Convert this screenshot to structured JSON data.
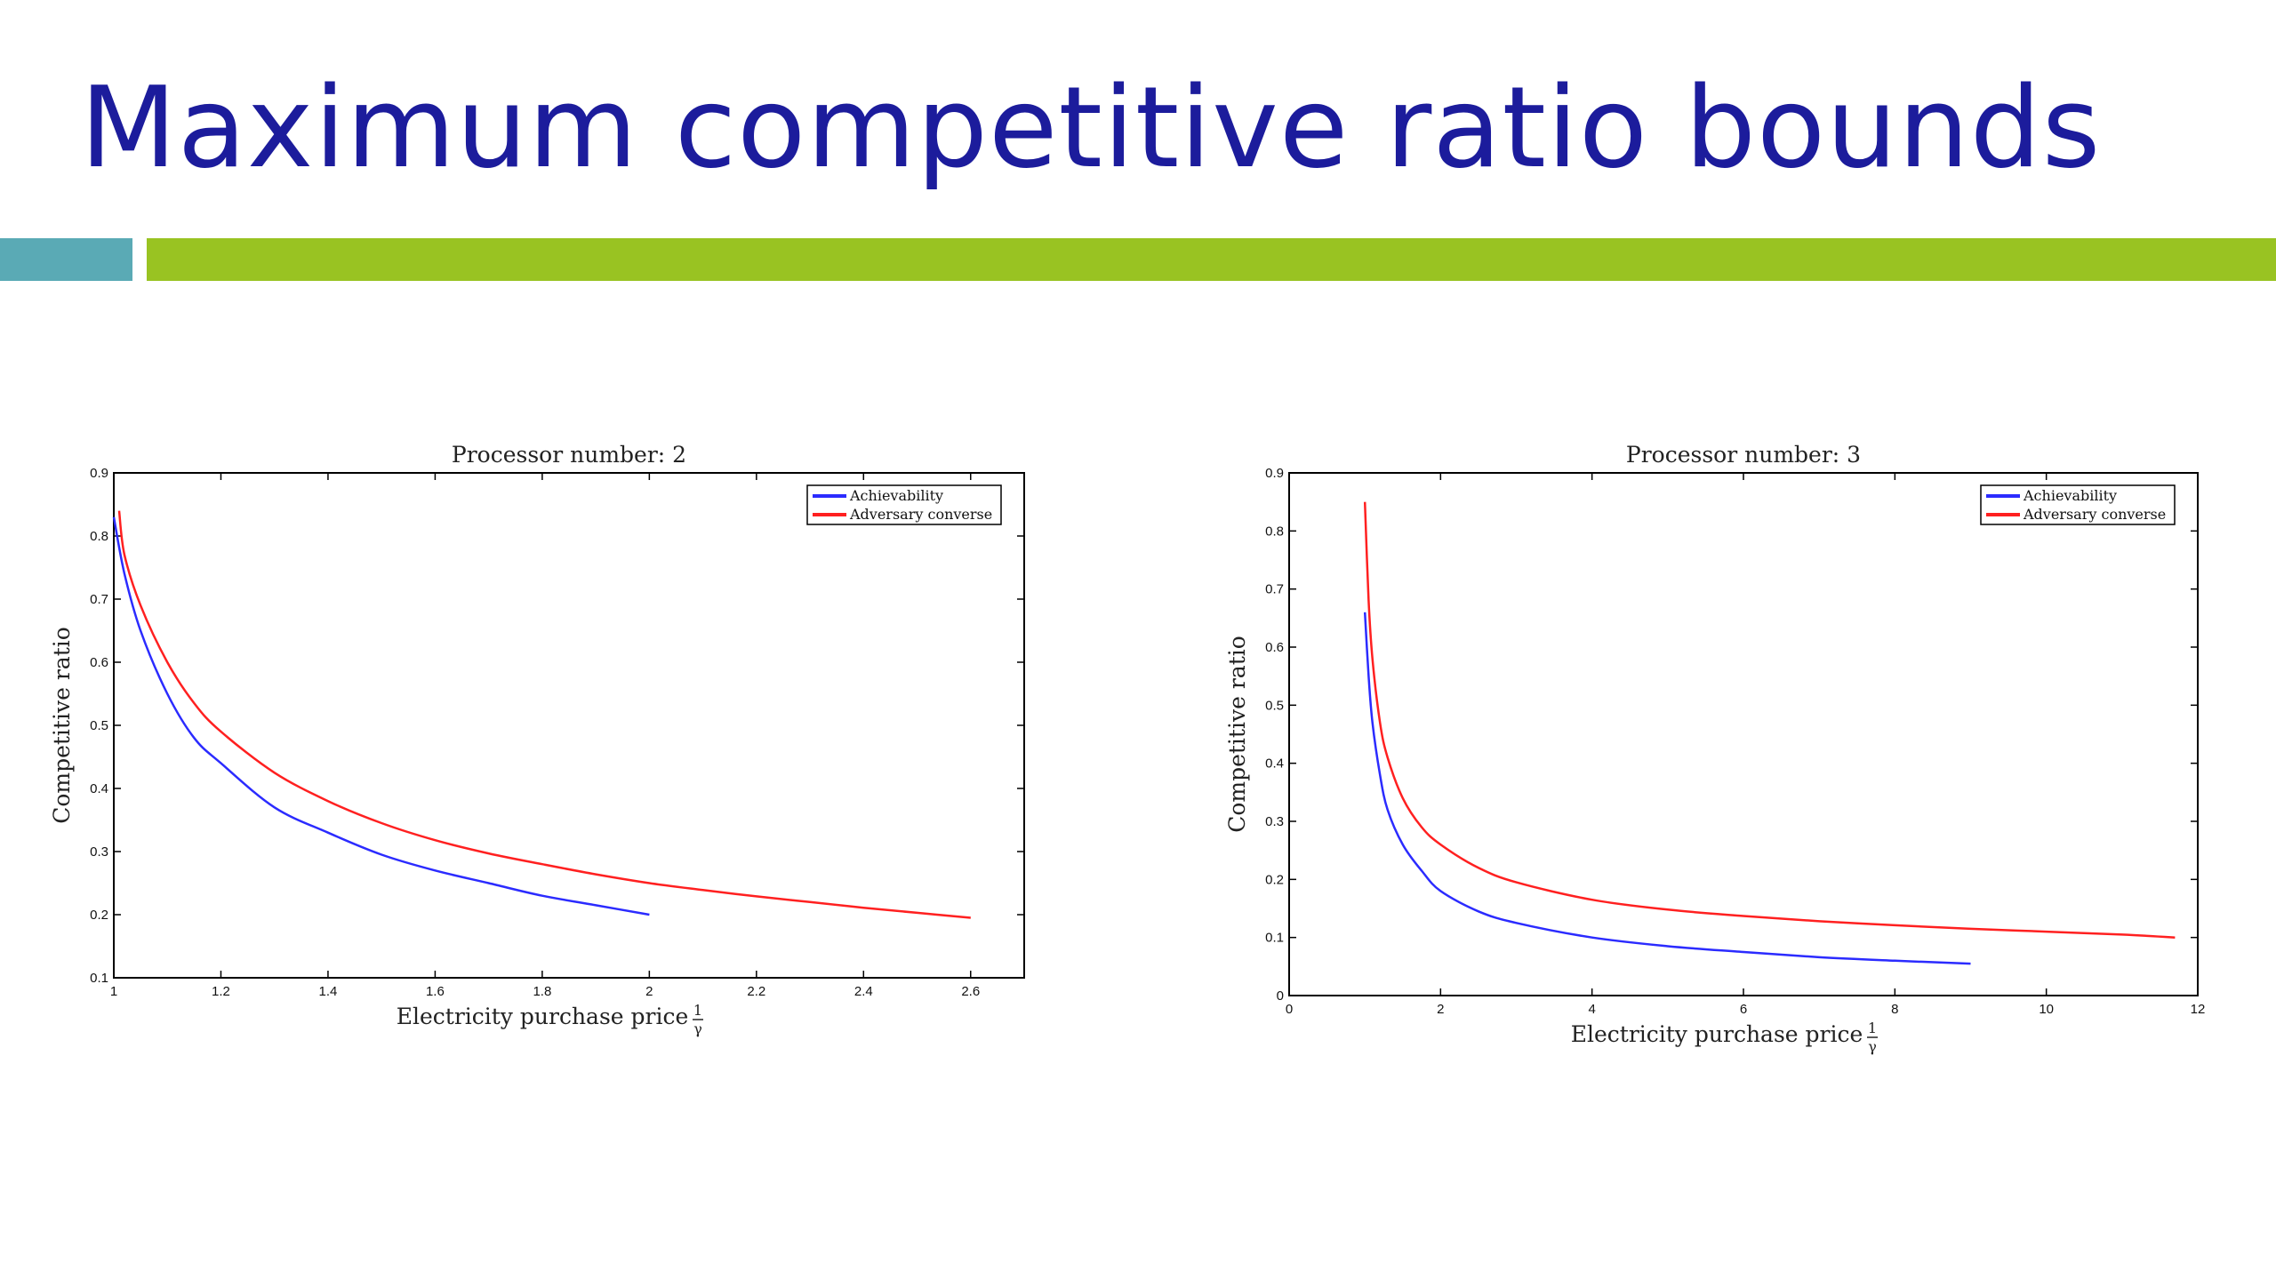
{
  "slide": {
    "title": "Maximum competitive ratio bounds",
    "colors": {
      "title": "#1c1c9c",
      "accent_teal": "#5aaab5",
      "accent_green": "#99c322"
    }
  },
  "chart_data": [
    {
      "type": "line",
      "title": "Processor number: 2",
      "xlabel": "Electricity purchase price",
      "xlabel_frac": {
        "num": "1",
        "den": "γ"
      },
      "ylabel": "Competitive ratio",
      "xlim": [
        1,
        2.7
      ],
      "ylim": [
        0.1,
        0.9
      ],
      "xticks": [
        1,
        1.2,
        1.4,
        1.6,
        1.8,
        2,
        2.2,
        2.4,
        2.6
      ],
      "xtick_labels": [
        "1",
        "1.2",
        "1.4",
        "1.6",
        "1.8",
        "2",
        "2.2",
        "2.4",
        "2.6"
      ],
      "yticks": [
        0.1,
        0.2,
        0.3,
        0.4,
        0.5,
        0.6,
        0.7,
        0.8,
        0.9
      ],
      "ytick_labels": [
        "0.1",
        "0.2",
        "0.3",
        "0.4",
        "0.5",
        "0.6",
        "0.7",
        "0.8",
        "0.9"
      ],
      "legend_position": "top-right",
      "grid": false,
      "series": [
        {
          "name": "Achievability",
          "color": "#2b2bff",
          "x": [
            1.0,
            1.02,
            1.05,
            1.1,
            1.15,
            1.2,
            1.3,
            1.4,
            1.5,
            1.6,
            1.7,
            1.8,
            1.9,
            2.0
          ],
          "y": [
            0.83,
            0.74,
            0.65,
            0.55,
            0.48,
            0.44,
            0.37,
            0.33,
            0.295,
            0.27,
            0.25,
            0.23,
            0.215,
            0.2
          ]
        },
        {
          "name": "Adversary converse",
          "color": "#ff2020",
          "x": [
            1.01,
            1.02,
            1.05,
            1.1,
            1.15,
            1.2,
            1.3,
            1.4,
            1.5,
            1.6,
            1.7,
            1.8,
            1.9,
            2.0,
            2.1,
            2.2,
            2.3,
            2.4,
            2.5,
            2.6
          ],
          "y": [
            0.84,
            0.77,
            0.69,
            0.6,
            0.535,
            0.49,
            0.425,
            0.38,
            0.345,
            0.318,
            0.297,
            0.28,
            0.264,
            0.25,
            0.239,
            0.229,
            0.22,
            0.211,
            0.203,
            0.195
          ]
        }
      ]
    },
    {
      "type": "line",
      "title": "Processor number: 3",
      "xlabel": "Electricity purchase price",
      "xlabel_frac": {
        "num": "1",
        "den": "γ"
      },
      "ylabel": "Competitive ratio",
      "xlim": [
        0,
        12
      ],
      "ylim": [
        0,
        0.9
      ],
      "xticks": [
        0,
        2,
        4,
        6,
        8,
        10,
        12
      ],
      "xtick_labels": [
        "0",
        "2",
        "4",
        "6",
        "8",
        "10",
        "12"
      ],
      "yticks": [
        0,
        0.1,
        0.2,
        0.3,
        0.4,
        0.5,
        0.6,
        0.7,
        0.8,
        0.9
      ],
      "ytick_labels": [
        "0",
        "0.1",
        "0.2",
        "0.3",
        "0.4",
        "0.5",
        "0.6",
        "0.7",
        "0.8",
        "0.9"
      ],
      "legend_position": "top-right",
      "grid": false,
      "series": [
        {
          "name": "Achievability",
          "color": "#2b2bff",
          "x": [
            1.0,
            1.05,
            1.1,
            1.2,
            1.3,
            1.5,
            1.75,
            2.0,
            2.5,
            3,
            4,
            5,
            6,
            7,
            8,
            9
          ],
          "y": [
            0.66,
            0.55,
            0.47,
            0.38,
            0.32,
            0.26,
            0.215,
            0.18,
            0.145,
            0.125,
            0.1,
            0.085,
            0.075,
            0.066,
            0.06,
            0.055
          ]
        },
        {
          "name": "Adversary converse",
          "color": "#ff2020",
          "x": [
            1.0,
            1.05,
            1.1,
            1.2,
            1.3,
            1.5,
            1.75,
            2.0,
            2.5,
            3,
            4,
            5,
            6,
            7,
            8,
            9,
            10,
            11,
            11.7
          ],
          "y": [
            0.85,
            0.68,
            0.58,
            0.47,
            0.41,
            0.34,
            0.29,
            0.26,
            0.22,
            0.195,
            0.165,
            0.148,
            0.137,
            0.128,
            0.121,
            0.115,
            0.11,
            0.105,
            0.1
          ]
        }
      ]
    }
  ]
}
